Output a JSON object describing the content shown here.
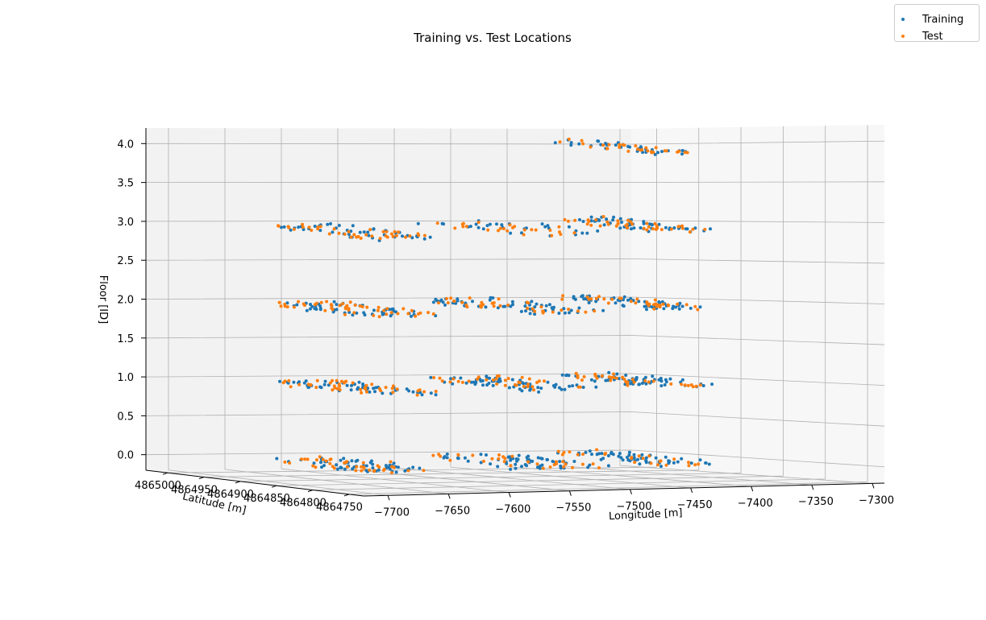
{
  "chart_data": {
    "type": "scatter",
    "title": "Training vs. Test Locations",
    "xlabel": "Longitude [m]",
    "ylabel": "Latitude [m]",
    "zlabel": "Floor [ID]",
    "xlim": [
      -7720,
      -7290
    ],
    "ylim": [
      4864730,
      4865030
    ],
    "zlim": [
      -0.2,
      4.2
    ],
    "x_ticks": [
      "−7700",
      "−7650",
      "−7600",
      "−7550",
      "−7500",
      "−7450",
      "−7400",
      "−7350",
      "−7300"
    ],
    "x_tick_values": [
      -7700,
      -7650,
      -7600,
      -7550,
      -7500,
      -7450,
      -7400,
      -7350,
      -7300
    ],
    "y_ticks": [
      "4865000",
      "4864950",
      "4864900",
      "4864850",
      "4864800",
      "4864750"
    ],
    "y_tick_values": [
      4865000,
      4864950,
      4864900,
      4864850,
      4864800,
      4864750
    ],
    "z_ticks": [
      "0.0",
      "0.5",
      "1.0",
      "1.5",
      "2.0",
      "2.5",
      "3.0",
      "3.5",
      "4.0"
    ],
    "z_tick_values": [
      0,
      0.5,
      1,
      1.5,
      2,
      2.5,
      3,
      3.5,
      4
    ],
    "grid": true,
    "legend_position": "top-right",
    "series": [
      {
        "name": "Training",
        "color": "#1f77b4",
        "clusters": [
          {
            "floor": 0,
            "lon": [
              -7668,
              -7608
            ],
            "count": 55
          },
          {
            "floor": 0,
            "lon": [
              -7545,
              -7468
            ],
            "count": 60
          },
          {
            "floor": 0,
            "lon": [
              -7430,
              -7380
            ],
            "count": 55
          },
          {
            "floor": 1,
            "lon": [
              -7668,
              -7610
            ],
            "count": 55
          },
          {
            "floor": 1,
            "lon": [
              -7545,
              -7470
            ],
            "count": 60
          },
          {
            "floor": 1,
            "lon": [
              -7432,
              -7378
            ],
            "count": 60
          },
          {
            "floor": 2,
            "lon": [
              -7668,
              -7608
            ],
            "count": 55
          },
          {
            "floor": 2,
            "lon": [
              -7545,
              -7470
            ],
            "count": 60
          },
          {
            "floor": 2,
            "lon": [
              -7432,
              -7380
            ],
            "count": 55
          },
          {
            "floor": 3,
            "lon": [
              -7668,
              -7610
            ],
            "count": 45
          },
          {
            "floor": 3,
            "lon": [
              -7545,
              -7470
            ],
            "count": 30
          },
          {
            "floor": 3,
            "lon": [
              -7432,
              -7380
            ],
            "count": 55
          },
          {
            "floor": 4,
            "lon": [
              -7430,
              -7398
            ],
            "count": 40
          }
        ]
      },
      {
        "name": "Test",
        "color": "#ff7f0e",
        "clusters": [
          {
            "floor": 0,
            "lon": [
              -7670,
              -7605
            ],
            "count": 40
          },
          {
            "floor": 0,
            "lon": [
              -7540,
              -7475
            ],
            "count": 30
          },
          {
            "floor": 0,
            "lon": [
              -7430,
              -7385
            ],
            "count": 25
          },
          {
            "floor": 1,
            "lon": [
              -7670,
              -7605
            ],
            "count": 45
          },
          {
            "floor": 1,
            "lon": [
              -7545,
              -7475
            ],
            "count": 35
          },
          {
            "floor": 1,
            "lon": [
              -7432,
              -7385
            ],
            "count": 35
          },
          {
            "floor": 2,
            "lon": [
              -7670,
              -7605
            ],
            "count": 50
          },
          {
            "floor": 2,
            "lon": [
              -7545,
              -7472
            ],
            "count": 35
          },
          {
            "floor": 2,
            "lon": [
              -7430,
              -7385
            ],
            "count": 35
          },
          {
            "floor": 3,
            "lon": [
              -7668,
              -7612
            ],
            "count": 40
          },
          {
            "floor": 3,
            "lon": [
              -7540,
              -7475
            ],
            "count": 25
          },
          {
            "floor": 3,
            "lon": [
              -7430,
              -7382
            ],
            "count": 40
          },
          {
            "floor": 4,
            "lon": [
              -7428,
              -7400
            ],
            "count": 30
          }
        ]
      }
    ]
  }
}
